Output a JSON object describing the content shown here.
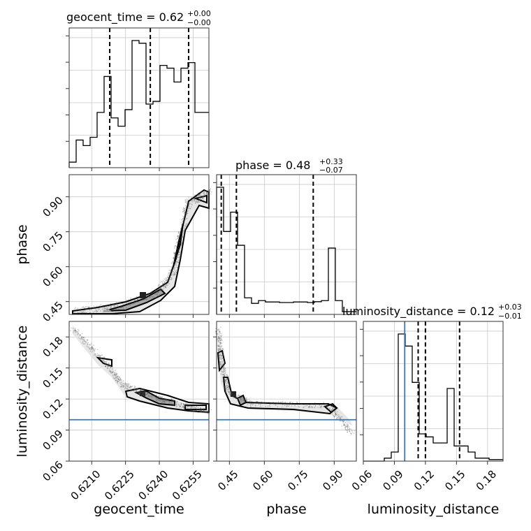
{
  "chart_data": {
    "type": "corner",
    "parameters": [
      "geocent_time",
      "phase",
      "luminosity_distance"
    ],
    "titles": [
      {
        "param": "geocent_time",
        "text": "geocent_time = 0.62",
        "sup": "+0.00",
        "sub": "−0.00"
      },
      {
        "param": "phase",
        "text": "phase = 0.48",
        "sup": "+0.33",
        "sub": "−0.07"
      },
      {
        "param": "luminosity_distance",
        "text": "luminosity_distance = 0.12",
        "sup": "+0.03",
        "sub": "−0.01"
      }
    ],
    "axis_labels": {
      "geocent_time": "geocent_time",
      "phase": "phase",
      "luminosity_distance": "luminosity_distance"
    },
    "ranges": {
      "geocent_time": [
        0.62,
        0.6262
      ],
      "phase": [
        0.395,
        0.995
      ],
      "luminosity_distance": [
        0.06,
        0.195
      ]
    },
    "ticks": {
      "geocent_time": [
        "0.6210",
        "0.6225",
        "0.6240",
        "0.6255"
      ],
      "phase": [
        "0.45",
        "0.60",
        "0.75",
        "0.90"
      ],
      "luminosity_distance": [
        "0.06",
        "0.09",
        "0.12",
        "0.15",
        "0.18"
      ]
    },
    "truth": {
      "luminosity_distance": 0.1
    },
    "histograms": {
      "geocent_time": {
        "bins": 20,
        "counts": [
          2,
          10,
          8,
          11,
          20,
          33,
          18,
          15,
          21,
          46,
          45,
          23,
          24,
          37,
          36,
          31,
          36,
          38,
          20,
          20
        ],
        "quantiles": [
          0.6218,
          0.6236,
          0.6253
        ]
      },
      "phase": {
        "bins": 20,
        "counts": [
          46,
          30,
          37,
          25,
          6,
          4,
          5,
          4.5,
          4.5,
          4.3,
          4.3,
          4.5,
          4.5,
          4.3,
          4.6,
          5,
          24,
          5,
          1,
          1
        ],
        "quantiles": [
          0.415,
          0.48,
          0.81
        ]
      },
      "luminosity_distance": {
        "bins": 20,
        "counts": [
          0,
          0,
          0,
          1,
          3,
          42,
          38,
          26,
          9,
          8,
          6,
          6,
          24,
          5,
          5,
          3,
          1,
          1,
          0.5,
          0.5
        ],
        "quantiles": [
          0.113,
          0.12,
          0.153
        ]
      }
    }
  }
}
